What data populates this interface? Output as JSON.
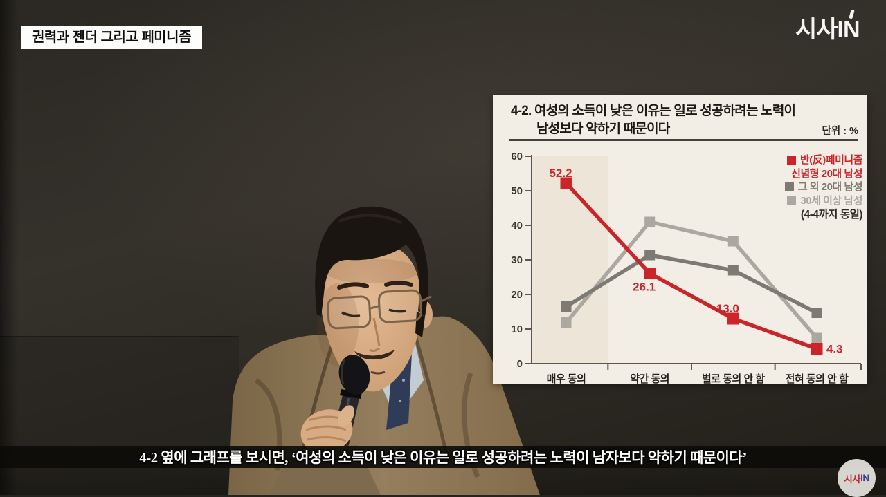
{
  "banner": {
    "text": "권력과 젠더 그리고 페미니즘"
  },
  "channel": {
    "logo_text": "시사IN"
  },
  "subtitle": {
    "text": "4-2 옆에 그래프를 보시면, ‘여성의 소득이 낮은 이유는 일로 성공하려는 노력이 남자보다 약하기 때문이다’"
  },
  "badge": {
    "red_text": "시사",
    "blue_text": "IN"
  },
  "colors": {
    "chart_background": "#f2eee5",
    "highlight_band": "#e8dfd0",
    "axis": "#5d574e",
    "series_red": "#c9252b",
    "series_dark_gray": "#7d7a73",
    "series_light_gray": "#aba8a2",
    "badge_red": "#c1272d",
    "badge_blue": "#3c3c9c"
  },
  "chart_data": {
    "type": "line",
    "title_lines": [
      "4-2. 여성의 소득이 낮은 이유는 일로 성공하려는 노력이",
      "남성보다 약하기 때문이다"
    ],
    "unit_label": "단위 : %",
    "categories": [
      "매우 동의",
      "약간 동의",
      "별로 동의 안 함",
      "전혀 동의 안 함"
    ],
    "yticks": [
      0,
      10,
      20,
      30,
      40,
      50,
      60
    ],
    "ylim": [
      0,
      60
    ],
    "grid": false,
    "legend_position": "top-right",
    "highlight_band_category": "매우 동의",
    "series": [
      {
        "name": "반(反)페미니즘 신념형 20대 남성",
        "legend_lines": [
          "반(反)페미니즘",
          "신념형 20대 남성"
        ],
        "color": "#c9252b",
        "values": [
          52.2,
          26.1,
          13.0,
          4.3
        ],
        "value_labels": [
          "52.2",
          "26.1",
          "13.0",
          "4.3"
        ],
        "label_positions": [
          "above",
          "below",
          "above",
          "right"
        ]
      },
      {
        "name": "그 외 20대 남성",
        "legend_lines": [
          "그 외 20대 남성"
        ],
        "color": "#7d7a73",
        "values": [
          16.5,
          31.4,
          27.0,
          14.7
        ]
      },
      {
        "name": "30세 이상 남성",
        "legend_lines": [
          "30세 이상 남성"
        ],
        "color": "#aba8a2",
        "values": [
          11.9,
          41.0,
          35.4,
          7.4
        ]
      }
    ],
    "legend_note": "(4-4까지 동일)"
  }
}
